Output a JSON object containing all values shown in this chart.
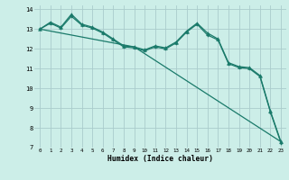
{
  "title": "",
  "xlabel": "Humidex (Indice chaleur)",
  "bg_color": "#cceee8",
  "grid_color": "#aacccc",
  "line_color": "#1a7a6a",
  "xlim": [
    -0.5,
    23.5
  ],
  "ylim": [
    7,
    14.2
  ],
  "xticks": [
    0,
    1,
    2,
    3,
    4,
    5,
    6,
    7,
    8,
    9,
    10,
    11,
    12,
    13,
    14,
    15,
    16,
    17,
    18,
    19,
    20,
    21,
    22,
    23
  ],
  "yticks": [
    7,
    8,
    9,
    10,
    11,
    12,
    13,
    14
  ],
  "series1_x": [
    0,
    1,
    2,
    3,
    4,
    5,
    6,
    7,
    8,
    9,
    10,
    11,
    12,
    13,
    14,
    15,
    16,
    17,
    18,
    19,
    20,
    21,
    22,
    23
  ],
  "series1_y": [
    13.0,
    13.35,
    13.1,
    13.75,
    13.25,
    13.1,
    12.85,
    12.5,
    12.15,
    12.1,
    11.95,
    12.15,
    12.05,
    12.35,
    12.9,
    13.3,
    12.8,
    12.5,
    11.3,
    11.1,
    11.05,
    10.65,
    8.85,
    7.3
  ],
  "series2_x": [
    0,
    1,
    2,
    3,
    4,
    5,
    6,
    7,
    8,
    9,
    10,
    11,
    12,
    13,
    14,
    15,
    16,
    17,
    18,
    19,
    20,
    21,
    22,
    23
  ],
  "series2_y": [
    13.0,
    13.3,
    13.05,
    13.65,
    13.2,
    13.05,
    12.8,
    12.45,
    12.1,
    12.05,
    11.9,
    12.1,
    12.0,
    12.3,
    12.85,
    13.25,
    12.7,
    12.45,
    11.25,
    11.05,
    11.0,
    10.6,
    8.8,
    7.25
  ],
  "series3_x": [
    0,
    9,
    23
  ],
  "series3_y": [
    13.0,
    12.1,
    7.3
  ]
}
